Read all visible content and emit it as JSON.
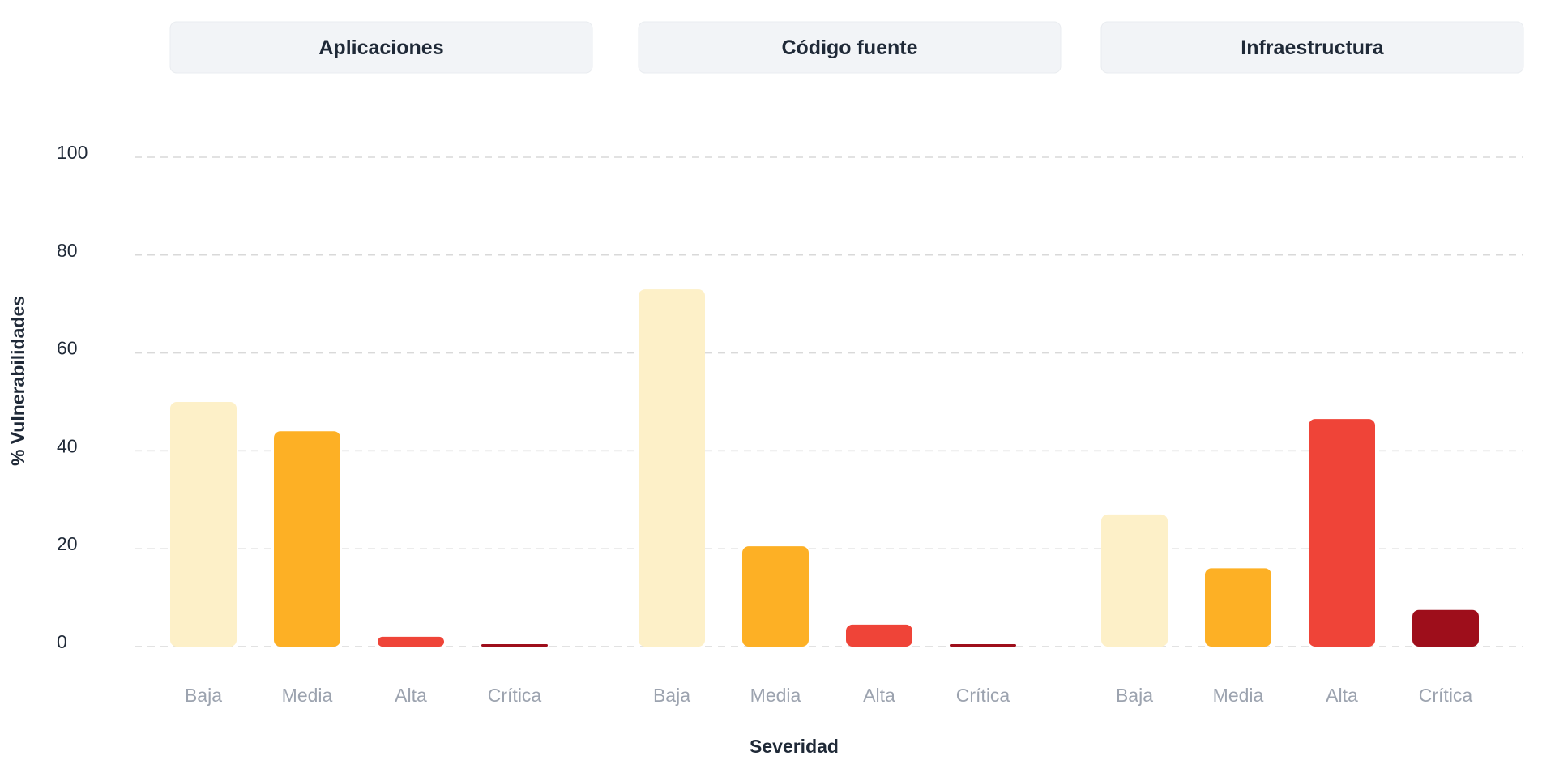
{
  "chart_data": {
    "type": "bar",
    "xlabel": "Severidad",
    "ylabel": "% Vulnerabilidades",
    "ylim": [
      0,
      100
    ],
    "yticks": [
      "0",
      "20",
      "40",
      "60",
      "80",
      "100"
    ],
    "grid": true,
    "categories": [
      "Baja",
      "Media",
      "Alta",
      "Crítica"
    ],
    "colors": {
      "Baja": "#fdf0c8",
      "Media": "#fdb025",
      "Alta": "#ef4438",
      "Crítica": "#9e0e1b"
    },
    "panels": [
      {
        "title": "Aplicaciones",
        "values": [
          50,
          44,
          2,
          0.5
        ]
      },
      {
        "title": "Código fuente",
        "values": [
          73,
          20.5,
          4.5,
          0.5
        ]
      },
      {
        "title": "Infraestructura",
        "values": [
          27,
          16,
          46.5,
          7.5
        ]
      }
    ]
  }
}
